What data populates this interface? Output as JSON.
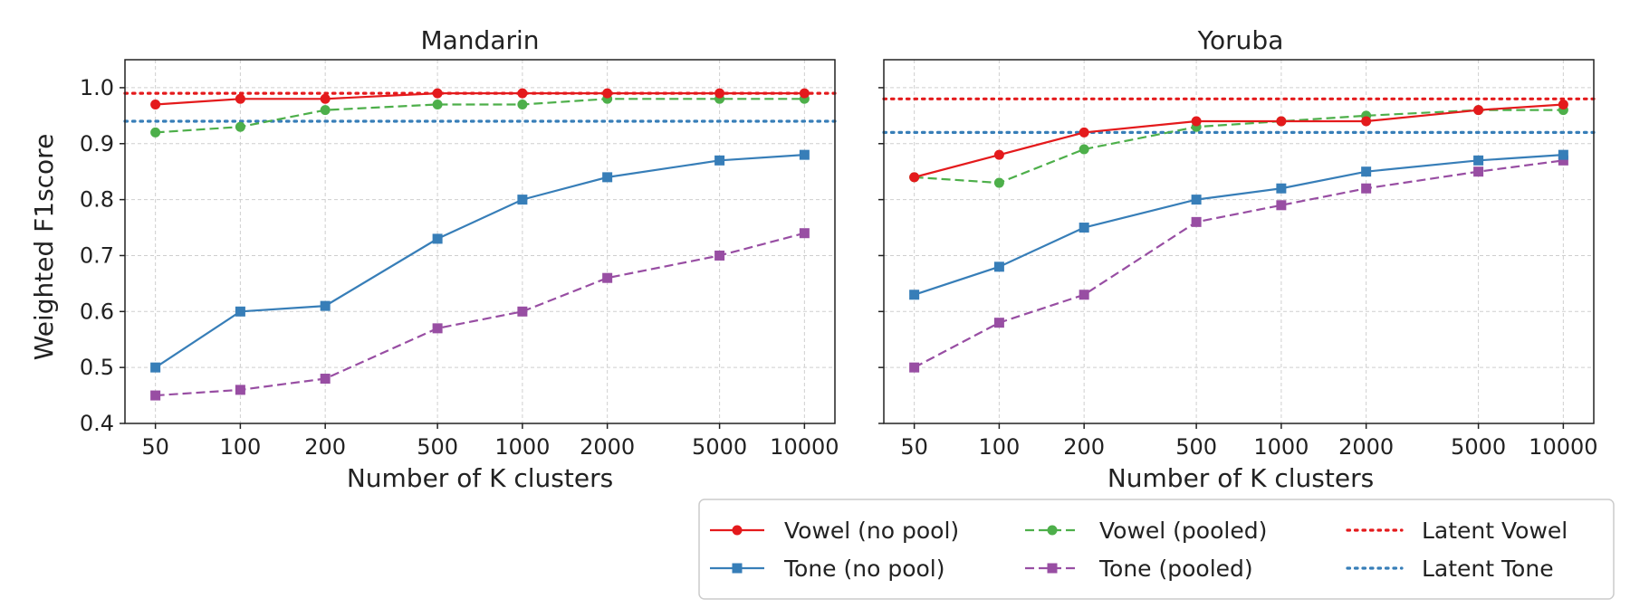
{
  "chart_data": [
    {
      "type": "line",
      "title": "Mandarin",
      "xlabel": "Number of K clusters",
      "ylabel": "Weighted F1score",
      "x_scale": "log",
      "x": [
        50,
        100,
        200,
        500,
        1000,
        2000,
        5000,
        10000
      ],
      "x_tick_labels": [
        "50",
        "100",
        "200",
        "500",
        "1000",
        "2000",
        "5000",
        "10000"
      ],
      "ylim": [
        0.4,
        1.05
      ],
      "y_ticks": [
        0.4,
        0.5,
        0.6,
        0.7,
        0.8,
        0.9,
        1.0
      ],
      "y_tick_labels": [
        "0.4",
        "0.5",
        "0.6",
        "0.7",
        "0.8",
        "0.9",
        "1.0"
      ],
      "grid": true,
      "series": [
        {
          "name": "Vowel (no pool)",
          "color": "#e41a1c",
          "style": "solid",
          "marker": "circle",
          "values": [
            0.97,
            0.98,
            0.98,
            0.99,
            0.99,
            0.99,
            0.99,
            0.99
          ]
        },
        {
          "name": "Vowel (pooled)",
          "color": "#4daf4a",
          "style": "dashed",
          "marker": "circle",
          "values": [
            0.92,
            0.93,
            0.96,
            0.97,
            0.97,
            0.98,
            0.98,
            0.98
          ]
        },
        {
          "name": "Tone (no pool)",
          "color": "#377eb8",
          "style": "solid",
          "marker": "square",
          "values": [
            0.5,
            0.6,
            0.61,
            0.73,
            0.8,
            0.84,
            0.87,
            0.88
          ]
        },
        {
          "name": "Tone (pooled)",
          "color": "#984ea3",
          "style": "dashed",
          "marker": "square",
          "values": [
            0.45,
            0.46,
            0.48,
            0.57,
            0.6,
            0.66,
            0.7,
            0.74
          ]
        }
      ],
      "reference_lines": [
        {
          "name": "Latent Vowel",
          "color": "#e41a1c",
          "value": 0.99
        },
        {
          "name": "Latent Tone",
          "color": "#377eb8",
          "value": 0.94
        }
      ]
    },
    {
      "type": "line",
      "title": "Yoruba",
      "xlabel": "Number of K clusters",
      "x_scale": "log",
      "x": [
        50,
        100,
        200,
        500,
        1000,
        2000,
        5000,
        10000
      ],
      "x_tick_labels": [
        "50",
        "100",
        "200",
        "500",
        "1000",
        "2000",
        "5000",
        "10000"
      ],
      "ylim": [
        0.4,
        1.05
      ],
      "y_ticks": [
        0.4,
        0.5,
        0.6,
        0.7,
        0.8,
        0.9,
        1.0
      ],
      "grid": true,
      "series": [
        {
          "name": "Vowel (no pool)",
          "color": "#e41a1c",
          "style": "solid",
          "marker": "circle",
          "values": [
            0.84,
            0.88,
            0.92,
            0.94,
            0.94,
            0.94,
            0.96,
            0.97
          ]
        },
        {
          "name": "Vowel (pooled)",
          "color": "#4daf4a",
          "style": "dashed",
          "marker": "circle",
          "values": [
            0.84,
            0.83,
            0.89,
            0.93,
            0.94,
            0.95,
            0.96,
            0.96
          ]
        },
        {
          "name": "Tone (no pool)",
          "color": "#377eb8",
          "style": "solid",
          "marker": "square",
          "values": [
            0.63,
            0.68,
            0.75,
            0.8,
            0.82,
            0.85,
            0.87,
            0.88
          ]
        },
        {
          "name": "Tone (pooled)",
          "color": "#984ea3",
          "style": "dashed",
          "marker": "square",
          "values": [
            0.5,
            0.58,
            0.63,
            0.76,
            0.79,
            0.82,
            0.85,
            0.87
          ]
        }
      ],
      "reference_lines": [
        {
          "name": "Latent Vowel",
          "color": "#e41a1c",
          "value": 0.98
        },
        {
          "name": "Latent Tone",
          "color": "#377eb8",
          "value": 0.92
        }
      ]
    }
  ],
  "legend": {
    "placement": "bottom-right",
    "entries": [
      {
        "label": "Vowel (no pool)",
        "color": "#e41a1c",
        "style": "solid",
        "marker": "circle"
      },
      {
        "label": "Vowel (pooled)",
        "color": "#4daf4a",
        "style": "dashed",
        "marker": "circle"
      },
      {
        "label": "Latent Vowel",
        "color": "#e41a1c",
        "style": "dotted",
        "marker": "none"
      },
      {
        "label": "Tone (no pool)",
        "color": "#377eb8",
        "style": "solid",
        "marker": "square"
      },
      {
        "label": "Tone (pooled)",
        "color": "#984ea3",
        "style": "dashed",
        "marker": "square"
      },
      {
        "label": "Latent Tone",
        "color": "#377eb8",
        "style": "dotted",
        "marker": "none"
      }
    ]
  }
}
